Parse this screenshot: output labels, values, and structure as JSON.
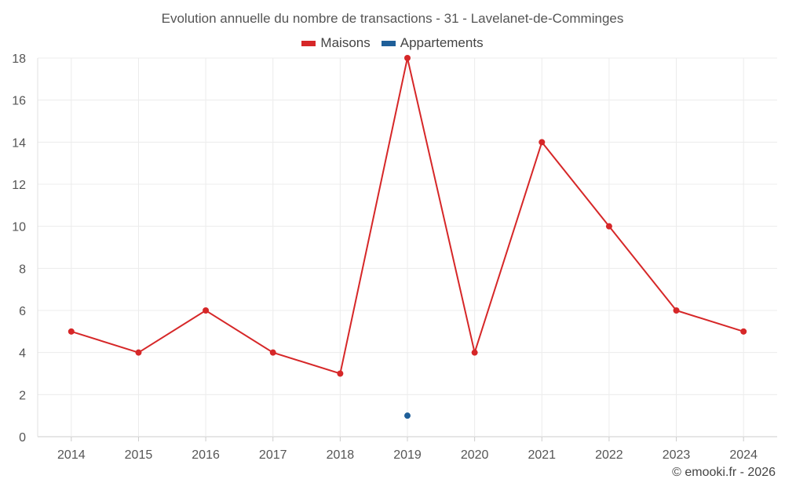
{
  "chart_data": {
    "type": "line",
    "title": "Evolution annuelle du nombre de transactions - 31 - Lavelanet-de-Comminges",
    "xlabel": "",
    "ylabel": "",
    "categories": [
      "2014",
      "2015",
      "2016",
      "2017",
      "2018",
      "2019",
      "2020",
      "2021",
      "2022",
      "2023",
      "2024"
    ],
    "ylim": [
      0,
      18
    ],
    "yticks": [
      0,
      2,
      4,
      6,
      8,
      10,
      12,
      14,
      16,
      18
    ],
    "grid": true,
    "legend_position": "top-center",
    "series": [
      {
        "name": "Maisons",
        "color": "#d62728",
        "values": [
          5,
          4,
          6,
          4,
          3,
          18,
          4,
          14,
          10,
          6,
          5
        ]
      },
      {
        "name": "Appartements",
        "color": "#1f5f99",
        "values": [
          null,
          null,
          null,
          null,
          null,
          1,
          null,
          null,
          null,
          null,
          null
        ]
      }
    ]
  },
  "footer": {
    "copyright": "© emooki.fr - 2026"
  }
}
